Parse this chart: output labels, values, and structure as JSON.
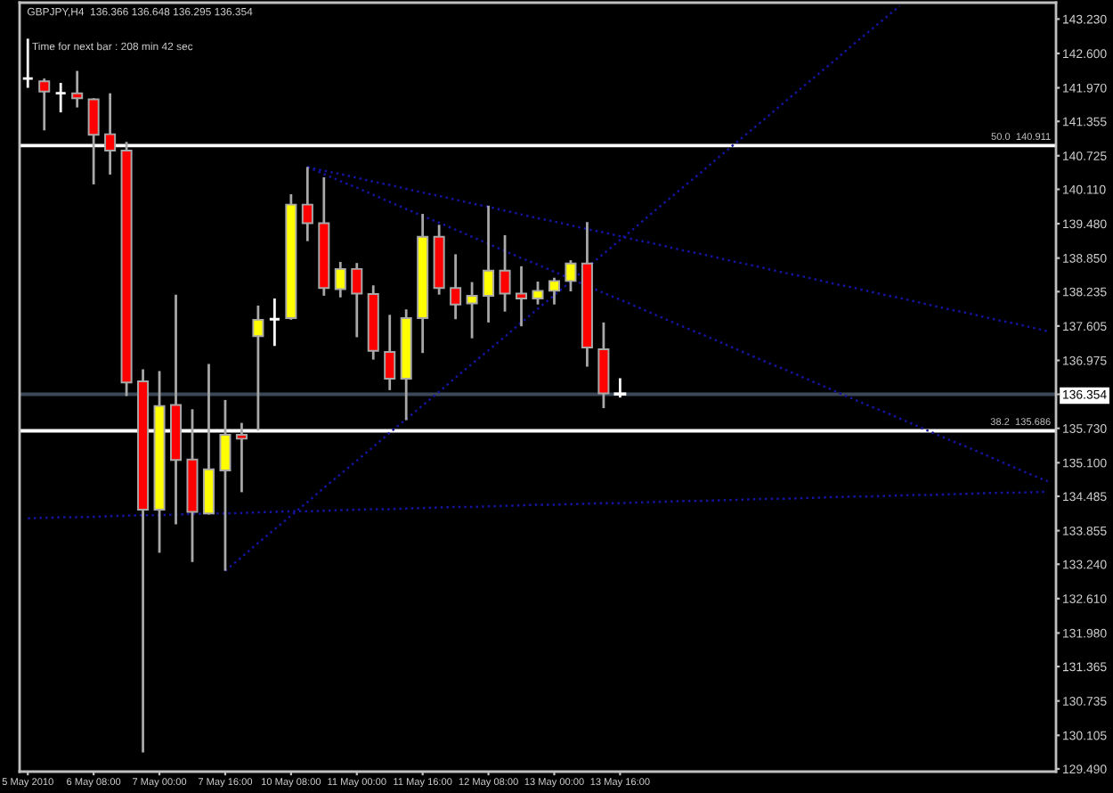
{
  "chart_data": {
    "type": "candlestick",
    "title": "GBPJPY,H4  136.366 136.648 136.295 136.354",
    "annotations": [
      "Time for next bar : 208 min 42 sec"
    ],
    "categories": [
      "5 May 2010",
      null,
      null,
      null,
      "6 May 08:00",
      null,
      null,
      null,
      "7 May 00:00",
      null,
      null,
      null,
      "7 May 16:00",
      null,
      null,
      null,
      "10 May 08:00",
      null,
      null,
      null,
      "11 May 00:00",
      null,
      null,
      null,
      "11 May 16:00",
      null,
      null,
      null,
      "12 May 08:00",
      null,
      null,
      null,
      "13 May 00:00",
      null,
      null,
      null,
      "13 May 16:00",
      null,
      null,
      null,
      null,
      null,
      null,
      null,
      null,
      null,
      null,
      null,
      null,
      null,
      null,
      null,
      null,
      null,
      null,
      null,
      null,
      null,
      null,
      null,
      null,
      null,
      null
    ],
    "ohlc": [
      [
        142.14,
        142.87,
        141.97,
        142.14
      ],
      [
        142.09,
        142.14,
        141.19,
        141.9
      ],
      [
        141.87,
        142.06,
        141.52,
        141.87
      ],
      [
        141.87,
        142.28,
        141.61,
        141.78
      ],
      [
        141.76,
        141.78,
        140.2,
        141.11
      ],
      [
        141.12,
        141.87,
        140.38,
        140.82
      ],
      [
        140.82,
        140.98,
        136.32,
        136.57
      ],
      [
        136.59,
        136.81,
        129.79,
        134.24
      ],
      [
        134.24,
        136.78,
        133.45,
        136.14
      ],
      [
        136.16,
        138.18,
        133.97,
        135.15
      ],
      [
        135.16,
        136.08,
        133.28,
        134.2
      ],
      [
        134.17,
        136.91,
        134.15,
        134.98
      ],
      [
        134.96,
        136.25,
        133.12,
        135.61
      ],
      [
        135.61,
        135.83,
        134.56,
        135.54
      ],
      [
        137.42,
        137.98,
        135.69,
        137.72
      ],
      [
        137.73,
        138.11,
        137.24,
        137.73
      ],
      [
        137.75,
        140.02,
        137.72,
        139.83
      ],
      [
        139.83,
        140.52,
        139.16,
        139.49
      ],
      [
        139.49,
        140.33,
        138.16,
        138.3
      ],
      [
        138.28,
        138.78,
        138.13,
        138.65
      ],
      [
        138.65,
        138.76,
        137.4,
        138.2
      ],
      [
        138.19,
        138.35,
        136.99,
        137.15
      ],
      [
        137.13,
        137.81,
        136.43,
        136.64
      ],
      [
        136.64,
        137.91,
        135.88,
        137.75
      ],
      [
        137.75,
        139.66,
        137.11,
        139.24
      ],
      [
        139.24,
        139.46,
        138.18,
        138.3
      ],
      [
        138.3,
        138.92,
        137.73,
        138.0
      ],
      [
        138.02,
        138.41,
        137.38,
        138.16
      ],
      [
        138.16,
        139.81,
        137.67,
        138.62
      ],
      [
        138.62,
        139.27,
        137.87,
        138.2
      ],
      [
        138.2,
        138.7,
        137.6,
        138.11
      ],
      [
        138.11,
        138.42,
        138.0,
        138.25
      ],
      [
        138.25,
        138.49,
        138.0,
        138.43
      ],
      [
        138.43,
        138.81,
        138.24,
        138.75
      ],
      [
        138.75,
        139.51,
        136.86,
        137.21
      ],
      [
        137.18,
        137.67,
        136.1,
        136.37
      ],
      [
        136.366,
        136.648,
        136.295,
        136.354
      ],
      null,
      null,
      null,
      null,
      null,
      null,
      null,
      null,
      null,
      null,
      null,
      null,
      null,
      null,
      null,
      null,
      null,
      null,
      null,
      null,
      null,
      null,
      null,
      null,
      null,
      null
    ],
    "colors": [
      "#ffffff",
      "#ff0000",
      "#ffffff",
      "#ff0000",
      "#ff0000",
      "#ff0000",
      "#ff0000",
      "#ff0000",
      "#ffff00",
      "#ff0000",
      "#ff0000",
      "#ffff00",
      "#ffff00",
      "#ff0000",
      "#ffff00",
      "#ffffff",
      "#ffff00",
      "#ff0000",
      "#ff0000",
      "#ffff00",
      "#ff0000",
      "#ff0000",
      "#ff0000",
      "#ffff00",
      "#ffff00",
      "#ff0000",
      "#ff0000",
      "#ffff00",
      "#ffff00",
      "#ff0000",
      "#ff0000",
      "#ffff00",
      "#ffff00",
      "#ffff00",
      "#ff0000",
      "#ff0000",
      "#ffffff",
      null,
      null,
      null,
      null,
      null,
      null,
      null,
      null,
      null,
      null,
      null,
      null,
      null,
      null,
      null,
      null,
      null,
      null,
      null,
      null,
      null,
      null,
      null,
      null,
      null,
      null
    ],
    "series": [
      {
        "type": "line",
        "color": "#1414a0",
        "line_style": "dotted",
        "values": [
          null,
          null,
          null,
          null,
          null,
          null,
          null,
          null,
          null,
          null,
          null,
          null,
          133.12,
          133.37,
          133.63,
          133.88,
          134.13,
          134.38,
          134.64,
          134.89,
          135.14,
          135.39,
          135.65,
          135.9,
          136.15,
          136.4,
          136.66,
          136.91,
          137.16,
          137.41,
          137.67,
          137.92,
          138.17,
          138.42,
          138.68,
          138.93,
          139.18,
          139.43,
          139.69,
          139.94,
          140.19,
          140.44,
          140.7,
          140.95,
          141.2,
          141.45,
          141.71,
          141.96,
          142.21,
          142.46,
          142.72,
          142.97,
          143.22,
          143.47,
          null,
          null,
          null,
          null,
          null,
          null,
          null,
          null,
          null
        ]
      },
      {
        "type": "line",
        "color": "#1414a0",
        "line_style": "dotted",
        "values": [
          null,
          null,
          null,
          null,
          null,
          null,
          null,
          null,
          null,
          null,
          null,
          null,
          null,
          null,
          null,
          null,
          null,
          140.52,
          140.45,
          140.39,
          140.32,
          140.25,
          140.19,
          140.12,
          140.05,
          139.99,
          139.92,
          139.85,
          139.79,
          139.72,
          139.65,
          139.58,
          139.52,
          139.45,
          139.38,
          139.32,
          139.25,
          139.18,
          139.12,
          139.05,
          138.98,
          138.92,
          138.85,
          138.78,
          138.72,
          138.65,
          138.58,
          138.52,
          138.45,
          138.38,
          138.32,
          138.25,
          138.18,
          138.12,
          138.05,
          137.98,
          137.91,
          137.85,
          137.78,
          137.71,
          137.65,
          137.58,
          137.51
        ]
      },
      {
        "type": "line",
        "color": "#1414a0",
        "line_style": "dotted",
        "values": [
          null,
          null,
          null,
          null,
          null,
          null,
          null,
          null,
          null,
          null,
          null,
          null,
          null,
          null,
          null,
          null,
          null,
          140.52,
          140.39,
          140.26,
          140.14,
          140.01,
          139.88,
          139.75,
          139.62,
          139.5,
          139.37,
          139.24,
          139.11,
          138.98,
          138.85,
          138.73,
          138.6,
          138.47,
          138.34,
          138.21,
          138.09,
          137.96,
          137.83,
          137.7,
          137.57,
          137.45,
          137.32,
          137.19,
          137.06,
          136.93,
          136.81,
          136.68,
          136.55,
          136.42,
          136.29,
          136.16,
          136.04,
          135.91,
          135.78,
          135.65,
          135.52,
          135.4,
          135.27,
          135.14,
          135.01,
          134.88,
          134.76
        ]
      },
      {
        "type": "line",
        "color": "#1414a0",
        "line_style": "dotted",
        "values": [
          134.08,
          134.09,
          134.1,
          134.1,
          134.11,
          134.12,
          134.13,
          134.14,
          134.14,
          134.15,
          134.16,
          134.17,
          134.17,
          134.18,
          134.19,
          134.2,
          134.21,
          134.21,
          134.22,
          134.23,
          134.24,
          134.25,
          134.25,
          134.26,
          134.27,
          134.28,
          134.29,
          134.29,
          134.3,
          134.31,
          134.32,
          134.33,
          134.33,
          134.34,
          134.35,
          134.36,
          134.36,
          134.37,
          134.38,
          134.39,
          134.4,
          134.4,
          134.41,
          134.42,
          134.43,
          134.44,
          134.44,
          134.45,
          134.46,
          134.47,
          134.48,
          134.48,
          134.49,
          134.5,
          134.51,
          134.51,
          134.52,
          134.53,
          134.54,
          134.55,
          134.55,
          134.56,
          134.57
        ]
      }
    ],
    "ref_lines": [
      {
        "axis": "y",
        "value": 140.911,
        "label": "50.0  140.911",
        "color": "#ffffff"
      },
      {
        "axis": "y",
        "value": 135.686,
        "label": "38.2  135.686",
        "color": "#ffffff"
      },
      {
        "axis": "y",
        "value": 136.354,
        "color": "#3c4858"
      }
    ],
    "ylim": [
      129.44,
      143.53
    ],
    "yticks": [
      {
        "value": 143.23,
        "label": "143.230"
      },
      {
        "value": 142.6,
        "label": "142.600"
      },
      {
        "value": 141.97,
        "label": "141.970"
      },
      {
        "value": 141.355,
        "label": "141.355"
      },
      {
        "value": 140.725,
        "label": "140.725"
      },
      {
        "value": 140.11,
        "label": "140.110"
      },
      {
        "value": 139.48,
        "label": "139.480"
      },
      {
        "value": 138.85,
        "label": "138.850"
      },
      {
        "value": 138.235,
        "label": "138.235"
      },
      {
        "value": 137.605,
        "label": "137.605"
      },
      {
        "value": 136.975,
        "label": "136.975"
      },
      {
        "value": 136.354,
        "label": "136.354"
      },
      {
        "value": 135.73,
        "label": "135.730"
      },
      {
        "value": 135.1,
        "label": "135.100"
      },
      {
        "value": 134.485,
        "label": "134.485"
      },
      {
        "value": 133.855,
        "label": "133.855"
      },
      {
        "value": 133.24,
        "label": "133.240"
      },
      {
        "value": 132.61,
        "label": "132.610"
      },
      {
        "value": 131.98,
        "label": "131.980"
      },
      {
        "value": 131.365,
        "label": "131.365"
      },
      {
        "value": 130.735,
        "label": "130.735"
      },
      {
        "value": 130.105,
        "label": "130.105"
      },
      {
        "value": 129.49,
        "label": "129.490"
      }
    ]
  }
}
